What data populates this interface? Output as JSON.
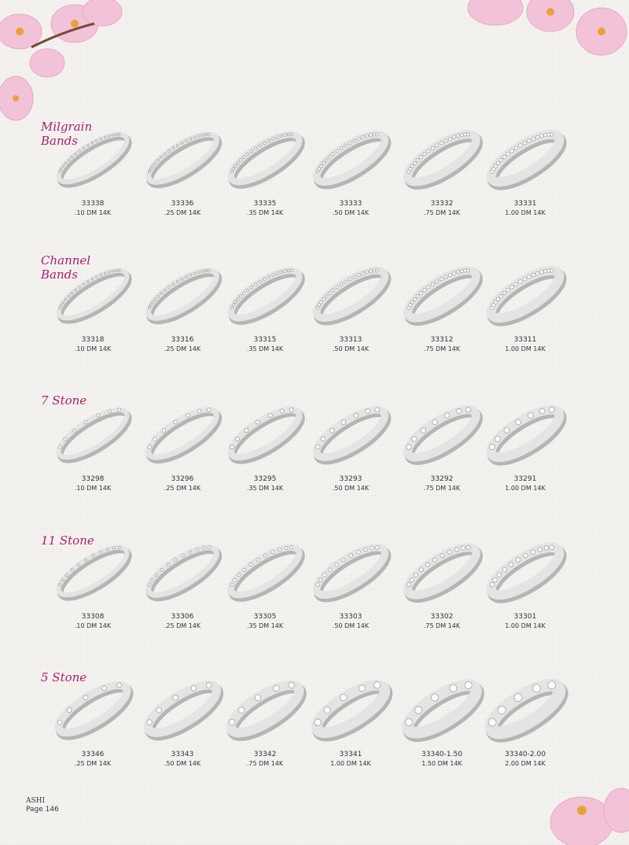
{
  "colors": {
    "accent": "#a8206e",
    "flower": "#f2c3d8",
    "metal": "#c9c9c9"
  },
  "sections": [
    {
      "title_line1": "Milgrain",
      "title_line2": "Bands",
      "stones": "pave",
      "items": [
        {
          "sku": "33338",
          "desc": ".10 DM  14K"
        },
        {
          "sku": "33336",
          "desc": ".25 DM  14K"
        },
        {
          "sku": "33335",
          "desc": ".35 DM  14K"
        },
        {
          "sku": "33333",
          "desc": ".50 DM  14K"
        },
        {
          "sku": "33332",
          "desc": ".75 DM  14K"
        },
        {
          "sku": "33331",
          "desc": "1.00 DM  14K"
        }
      ]
    },
    {
      "title_line1": "Channel",
      "title_line2": "Bands",
      "stones": "channel",
      "items": [
        {
          "sku": "33318",
          "desc": ".10 DM  14K"
        },
        {
          "sku": "33316",
          "desc": ".25 DM  14K"
        },
        {
          "sku": "33315",
          "desc": ".35 DM  14K"
        },
        {
          "sku": "33313",
          "desc": ".50 DM  14K"
        },
        {
          "sku": "33312",
          "desc": ".75 DM  14K"
        },
        {
          "sku": "33311",
          "desc": "1.00 DM  14K"
        }
      ]
    },
    {
      "title_line1": "7 Stone",
      "title_line2": "",
      "stones": "7",
      "items": [
        {
          "sku": "33298",
          "desc": ".10 DM  14K"
        },
        {
          "sku": "33296",
          "desc": ".25 DM  14K"
        },
        {
          "sku": "33295",
          "desc": ".35 DM  14K"
        },
        {
          "sku": "33293",
          "desc": ".50 DM  14K"
        },
        {
          "sku": "33292",
          "desc": ".75 DM  14K"
        },
        {
          "sku": "33291",
          "desc": "1.00 DM  14K"
        }
      ]
    },
    {
      "title_line1": "11 Stone",
      "title_line2": "",
      "stones": "11",
      "items": [
        {
          "sku": "33308",
          "desc": ".10 DM  14K"
        },
        {
          "sku": "33306",
          "desc": ".25 DM  14K"
        },
        {
          "sku": "33305",
          "desc": ".35 DM  14K"
        },
        {
          "sku": "33303",
          "desc": ".50 DM  14K"
        },
        {
          "sku": "33302",
          "desc": ".75 DM  14K"
        },
        {
          "sku": "33301",
          "desc": "1.00 DM  14K"
        }
      ]
    },
    {
      "title_line1": "5 Stone",
      "title_line2": "",
      "stones": "5",
      "items": [
        {
          "sku": "33346",
          "desc": ".25 DM  14K"
        },
        {
          "sku": "33343",
          "desc": ".50 DM  14K"
        },
        {
          "sku": "33342",
          "desc": ".75 DM  14K"
        },
        {
          "sku": "33341",
          "desc": "1.00 DM  14K"
        },
        {
          "sku": "33340-1.50",
          "desc": "1.50 DM  14K"
        },
        {
          "sku": "33340-2.00",
          "desc": "2.00 DM  14K"
        }
      ]
    }
  ],
  "footer": {
    "brand": "ASHI",
    "page": "Page 146"
  }
}
